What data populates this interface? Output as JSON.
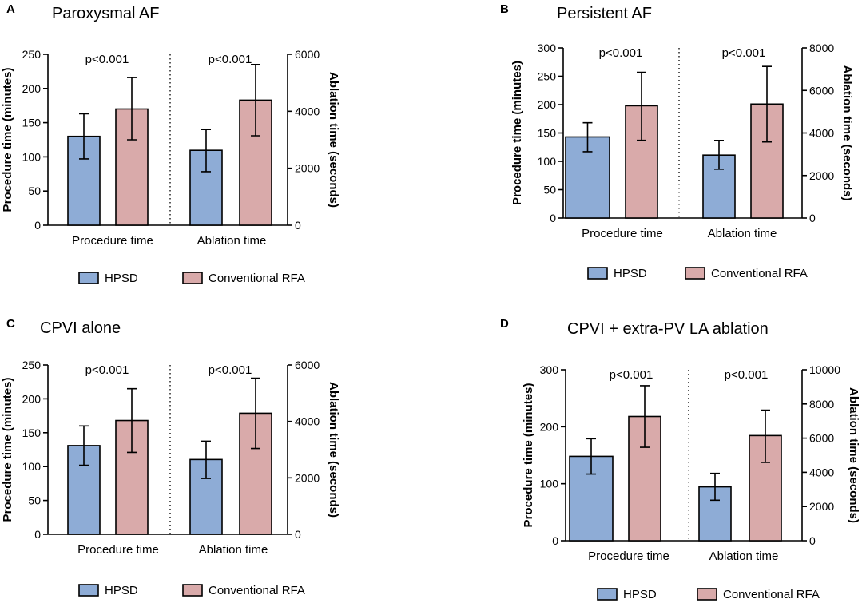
{
  "colors": {
    "hpsd": "#8eacd6",
    "conventional": "#d9aaaa"
  },
  "legend": {
    "hpsd": "HPSD",
    "conventional": "Conventional RFA"
  },
  "chart_data": [
    {
      "type": "bar",
      "letter": "A",
      "title": "Paroxysmal AF",
      "ylabel_left": "Procedure time (minutes)",
      "ylabel_right": "Ablation time (seconds)",
      "ylim_left": [
        0,
        250
      ],
      "yticks_left": [
        0,
        50,
        100,
        150,
        200,
        250
      ],
      "ylim_right": [
        0,
        6000
      ],
      "yticks_right": [
        0,
        2000,
        4000,
        6000
      ],
      "categories": [
        "Procedure time",
        "Ablation time"
      ],
      "pvalues": [
        "p<0.001",
        "p<0.001"
      ],
      "series": [
        {
          "name": "HPSD",
          "procedure": {
            "value": 130,
            "err_low": 97,
            "err_high": 163
          },
          "ablation": {
            "value": 2630,
            "err_low": 1880,
            "err_high": 3360
          }
        },
        {
          "name": "Conventional RFA",
          "procedure": {
            "value": 170,
            "err_low": 125,
            "err_high": 216
          },
          "ablation": {
            "value": 4390,
            "err_low": 3140,
            "err_high": 5640
          }
        }
      ]
    },
    {
      "type": "bar",
      "letter": "B",
      "title": "Persistent AF",
      "ylabel_left": "Procedure time (minutes)",
      "ylabel_right": "Ablation time (seconds)",
      "ylim_left": [
        0,
        300
      ],
      "yticks_left": [
        0,
        50,
        100,
        150,
        200,
        250,
        300
      ],
      "ylim_right": [
        0,
        8000
      ],
      "yticks_right": [
        0,
        2000,
        4000,
        6000,
        8000
      ],
      "categories": [
        "Procedure time",
        "Ablation time"
      ],
      "pvalues": [
        "p<0.001",
        "p<0.001"
      ],
      "series": [
        {
          "name": "HPSD",
          "procedure": {
            "value": 143,
            "err_low": 117,
            "err_high": 168
          },
          "ablation": {
            "value": 2960,
            "err_low": 2300,
            "err_high": 3650
          }
        },
        {
          "name": "Conventional RFA",
          "procedure": {
            "value": 198,
            "err_low": 137,
            "err_high": 257
          },
          "ablation": {
            "value": 5360,
            "err_low": 3580,
            "err_high": 7130
          }
        }
      ]
    },
    {
      "type": "bar",
      "letter": "C",
      "title": "CPVI alone",
      "ylabel_left": "Procedure time (minutes)",
      "ylabel_right": "Ablation time (seconds)",
      "ylim_left": [
        0,
        250
      ],
      "yticks_left": [
        0,
        50,
        100,
        150,
        200,
        250
      ],
      "ylim_right": [
        0,
        6000
      ],
      "yticks_right": [
        0,
        2000,
        4000,
        6000
      ],
      "categories": [
        "Procedure time",
        "Ablation time"
      ],
      "pvalues": [
        "p<0.001",
        "p<0.001"
      ],
      "series": [
        {
          "name": "HPSD",
          "procedure": {
            "value": 131,
            "err_low": 102,
            "err_high": 160
          },
          "ablation": {
            "value": 2650,
            "err_low": 1980,
            "err_high": 3300
          }
        },
        {
          "name": "Conventional RFA",
          "procedure": {
            "value": 168,
            "err_low": 121,
            "err_high": 215
          },
          "ablation": {
            "value": 4290,
            "err_low": 3040,
            "err_high": 5530
          }
        }
      ]
    },
    {
      "type": "bar",
      "letter": "D",
      "title": "CPVI + extra-PV LA ablation",
      "ylabel_left": "Procedure time (minutes)",
      "ylabel_right": "Ablation time (seconds)",
      "ylim_left": [
        0,
        300
      ],
      "yticks_left": [
        0,
        100,
        200,
        300
      ],
      "ylim_right": [
        0,
        10000
      ],
      "yticks_right": [
        0,
        2000,
        4000,
        6000,
        8000,
        10000
      ],
      "categories": [
        "Procedure time",
        "Ablation time"
      ],
      "pvalues": [
        "p<0.001",
        "p<0.001"
      ],
      "series": [
        {
          "name": "HPSD",
          "procedure": {
            "value": 148,
            "err_low": 117,
            "err_high": 179
          },
          "ablation": {
            "value": 3150,
            "err_low": 2370,
            "err_high": 3940
          }
        },
        {
          "name": "Conventional RFA",
          "procedure": {
            "value": 218,
            "err_low": 164,
            "err_high": 272
          },
          "ablation": {
            "value": 6150,
            "err_low": 4580,
            "err_high": 7640
          }
        }
      ]
    }
  ]
}
